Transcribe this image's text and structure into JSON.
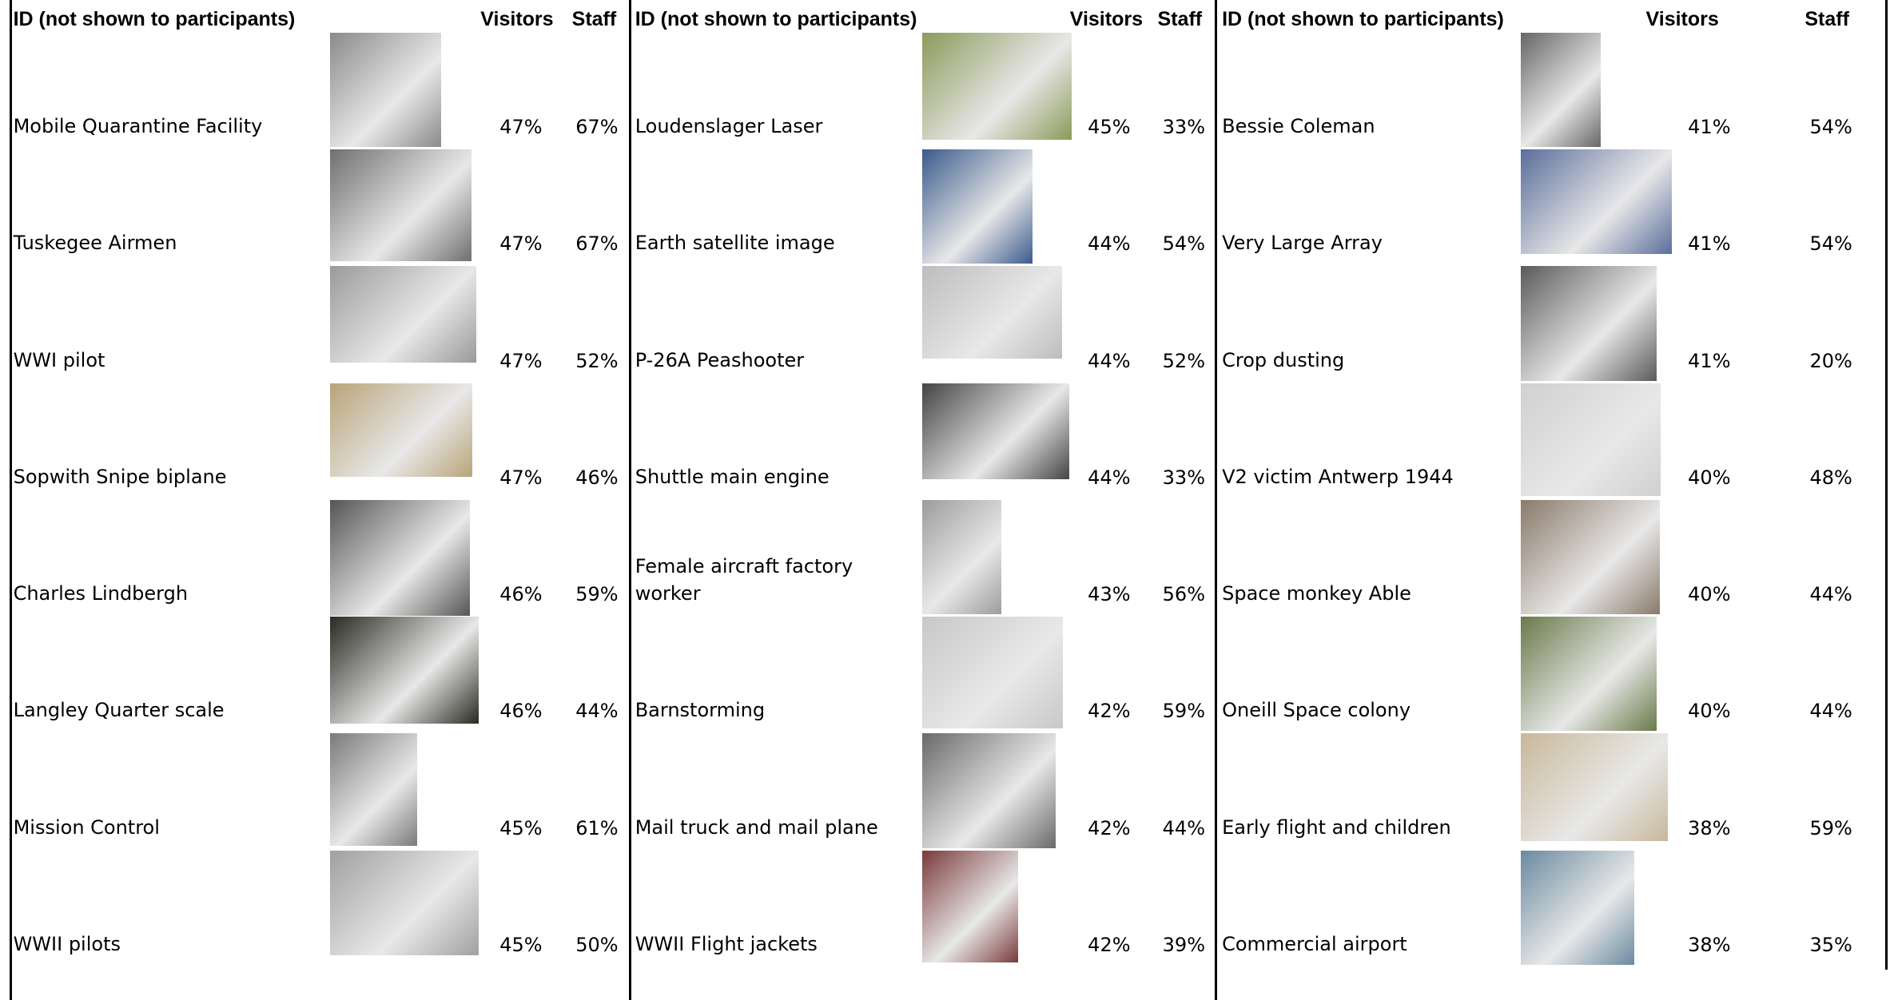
{
  "groups": [
    {
      "header": {
        "id": "ID (not shown to participants)",
        "visitors": "Visitors",
        "staff": "Staff"
      },
      "rows": [
        {
          "id": "Mobile Quarantine Facility",
          "visitors": "47%",
          "staff": "67%"
        },
        {
          "id": "Tuskegee Airmen",
          "visitors": "47%",
          "staff": "67%"
        },
        {
          "id": "WWI pilot",
          "visitors": "47%",
          "staff": "52%"
        },
        {
          "id": "Sopwith Snipe biplane",
          "visitors": "47%",
          "staff": "46%"
        },
        {
          "id": "Charles Lindbergh",
          "visitors": "46%",
          "staff": "59%"
        },
        {
          "id": "Langley Quarter scale",
          "visitors": "46%",
          "staff": "44%"
        },
        {
          "id": "Mission Control",
          "visitors": "45%",
          "staff": "61%"
        },
        {
          "id": "WWII pilots",
          "visitors": "45%",
          "staff": "50%"
        }
      ]
    },
    {
      "header": {
        "id": "ID (not shown to participants)",
        "visitors": "Visitors",
        "staff": "Staff"
      },
      "rows": [
        {
          "id": "Loudenslager Laser",
          "visitors": "45%",
          "staff": "33%"
        },
        {
          "id": "Earth satellite image",
          "visitors": "44%",
          "staff": "54%"
        },
        {
          "id": "P-26A Peashooter",
          "visitors": "44%",
          "staff": "52%"
        },
        {
          "id": "Shuttle main engine",
          "visitors": "44%",
          "staff": "33%"
        },
        {
          "id": "Female aircraft factory worker",
          "visitors": "43%",
          "staff": "56%"
        },
        {
          "id": "Barnstorming",
          "visitors": "42%",
          "staff": "59%"
        },
        {
          "id": "Mail truck and mail plane",
          "visitors": "42%",
          "staff": "44%"
        },
        {
          "id": "WWII Flight jackets",
          "visitors": "42%",
          "staff": "39%"
        }
      ]
    },
    {
      "header": {
        "id": "ID (not shown to participants)",
        "visitors": "Visitors",
        "staff": "Staff"
      },
      "rows": [
        {
          "id": "Bessie Coleman",
          "visitors": "41%",
          "staff": "54%"
        },
        {
          "id": "Very Large Array",
          "visitors": "41%",
          "staff": "54%"
        },
        {
          "id": "Crop dusting",
          "visitors": "41%",
          "staff": "20%"
        },
        {
          "id": "V2 victim Antwerp 1944",
          "visitors": "40%",
          "staff": "48%"
        },
        {
          "id": "Space monkey Able",
          "visitors": "40%",
          "staff": "44%"
        },
        {
          "id": "Oneill Space colony",
          "visitors": "40%",
          "staff": "44%"
        },
        {
          "id": "Early flight and children",
          "visitors": "38%",
          "staff": "59%"
        },
        {
          "id": "Commercial airport",
          "visitors": "38%",
          "staff": "35%"
        }
      ]
    }
  ]
}
